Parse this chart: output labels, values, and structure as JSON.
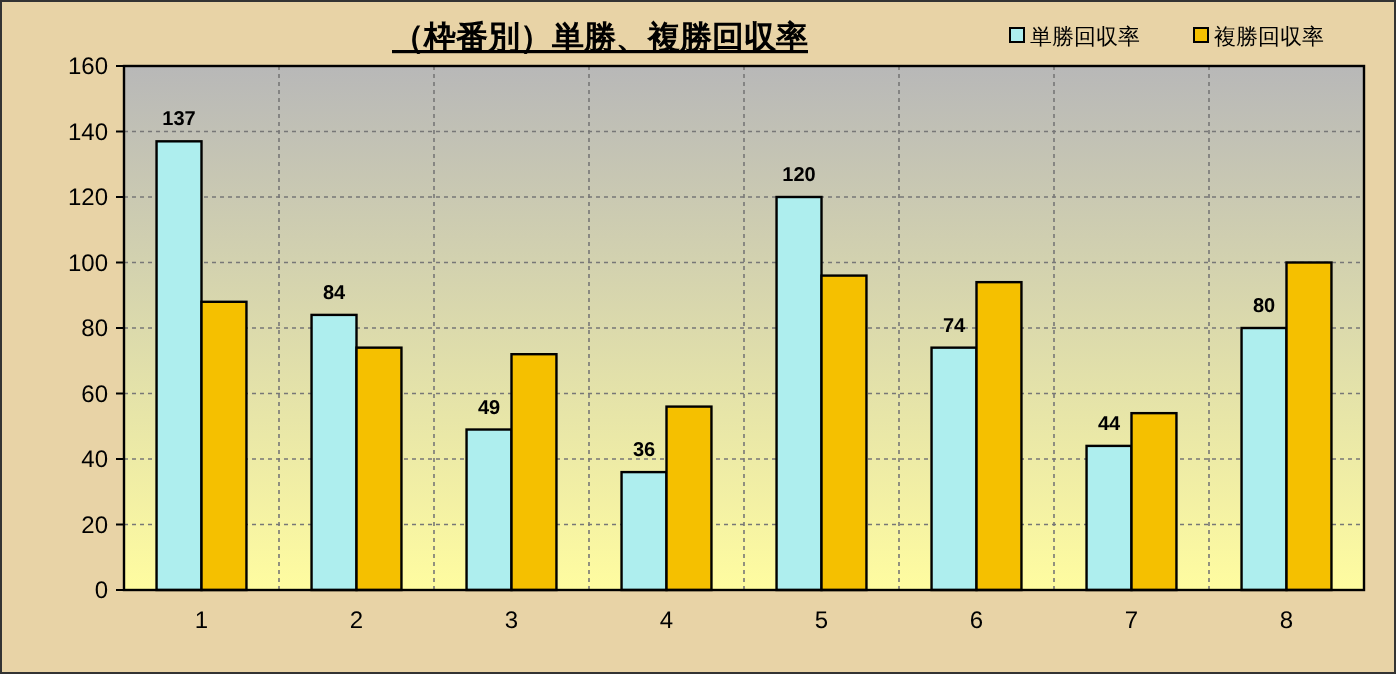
{
  "chart_data": {
    "type": "bar",
    "title": "（枠番別）単勝、複勝回収率",
    "categories": [
      "1",
      "2",
      "3",
      "4",
      "5",
      "6",
      "7",
      "8"
    ],
    "series": [
      {
        "name": "単勝回収率",
        "color": "#aeeeee",
        "values": [
          137,
          84,
          49,
          36,
          120,
          74,
          44,
          80
        ],
        "value_labels": [
          "137",
          "84",
          "49",
          "36",
          "120",
          "74",
          "44",
          "80"
        ]
      },
      {
        "name": "複勝回収率",
        "color": "#f5c000",
        "values": [
          88,
          74,
          72,
          56,
          96,
          94,
          54,
          100
        ]
      }
    ],
    "ylim": [
      0,
      160
    ],
    "yticks": [
      0,
      20,
      40,
      60,
      80,
      100,
      120,
      140,
      160
    ],
    "grid": true,
    "legend": "top right"
  }
}
